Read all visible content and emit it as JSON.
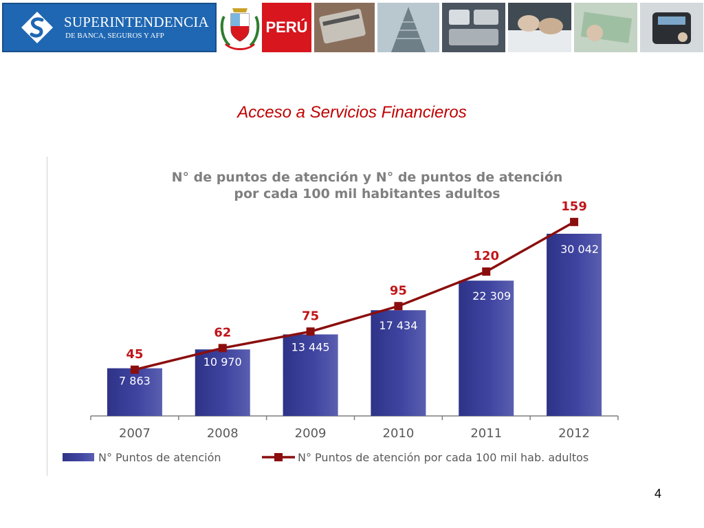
{
  "header": {
    "logo_name": "SUPERINTENDENCIA",
    "logo_subtitle": "DE BANCA, SEGUROS Y AFP",
    "country_label": "PERÚ"
  },
  "slide": {
    "title": "Acceso a Servicios Financieros",
    "page_number": "4"
  },
  "colors": {
    "bar": "#3a3e96",
    "line": "#8b0e0e",
    "line_labels": "#c0161b",
    "chart_title": "#7f7f7f",
    "slide_title": "#c00000",
    "banner_blue": "#1f67b2",
    "peru_red": "#d7161e"
  },
  "chart_data": {
    "type": "bar",
    "title_line1": "N° de puntos de atención y N° de puntos de atención",
    "title_line2": "por cada 100 mil habitantes adultos",
    "categories": [
      "2007",
      "2008",
      "2009",
      "2010",
      "2011",
      "2012"
    ],
    "series": [
      {
        "name": "N° Puntos de atención",
        "type": "bar",
        "values": [
          7863,
          10970,
          13445,
          17434,
          22309,
          30042
        ],
        "labels": [
          "7 863",
          "10 970",
          "13 445",
          "17 434",
          "22 309",
          "30 042"
        ]
      },
      {
        "name": "N° Puntos de atención por cada 100 mil hab. adultos",
        "type": "line",
        "values": [
          45,
          62,
          75,
          95,
          120,
          159
        ],
        "labels": [
          "45",
          "62",
          "75",
          "95",
          "120",
          "159"
        ]
      }
    ],
    "grid": false,
    "legend": "bottom"
  }
}
